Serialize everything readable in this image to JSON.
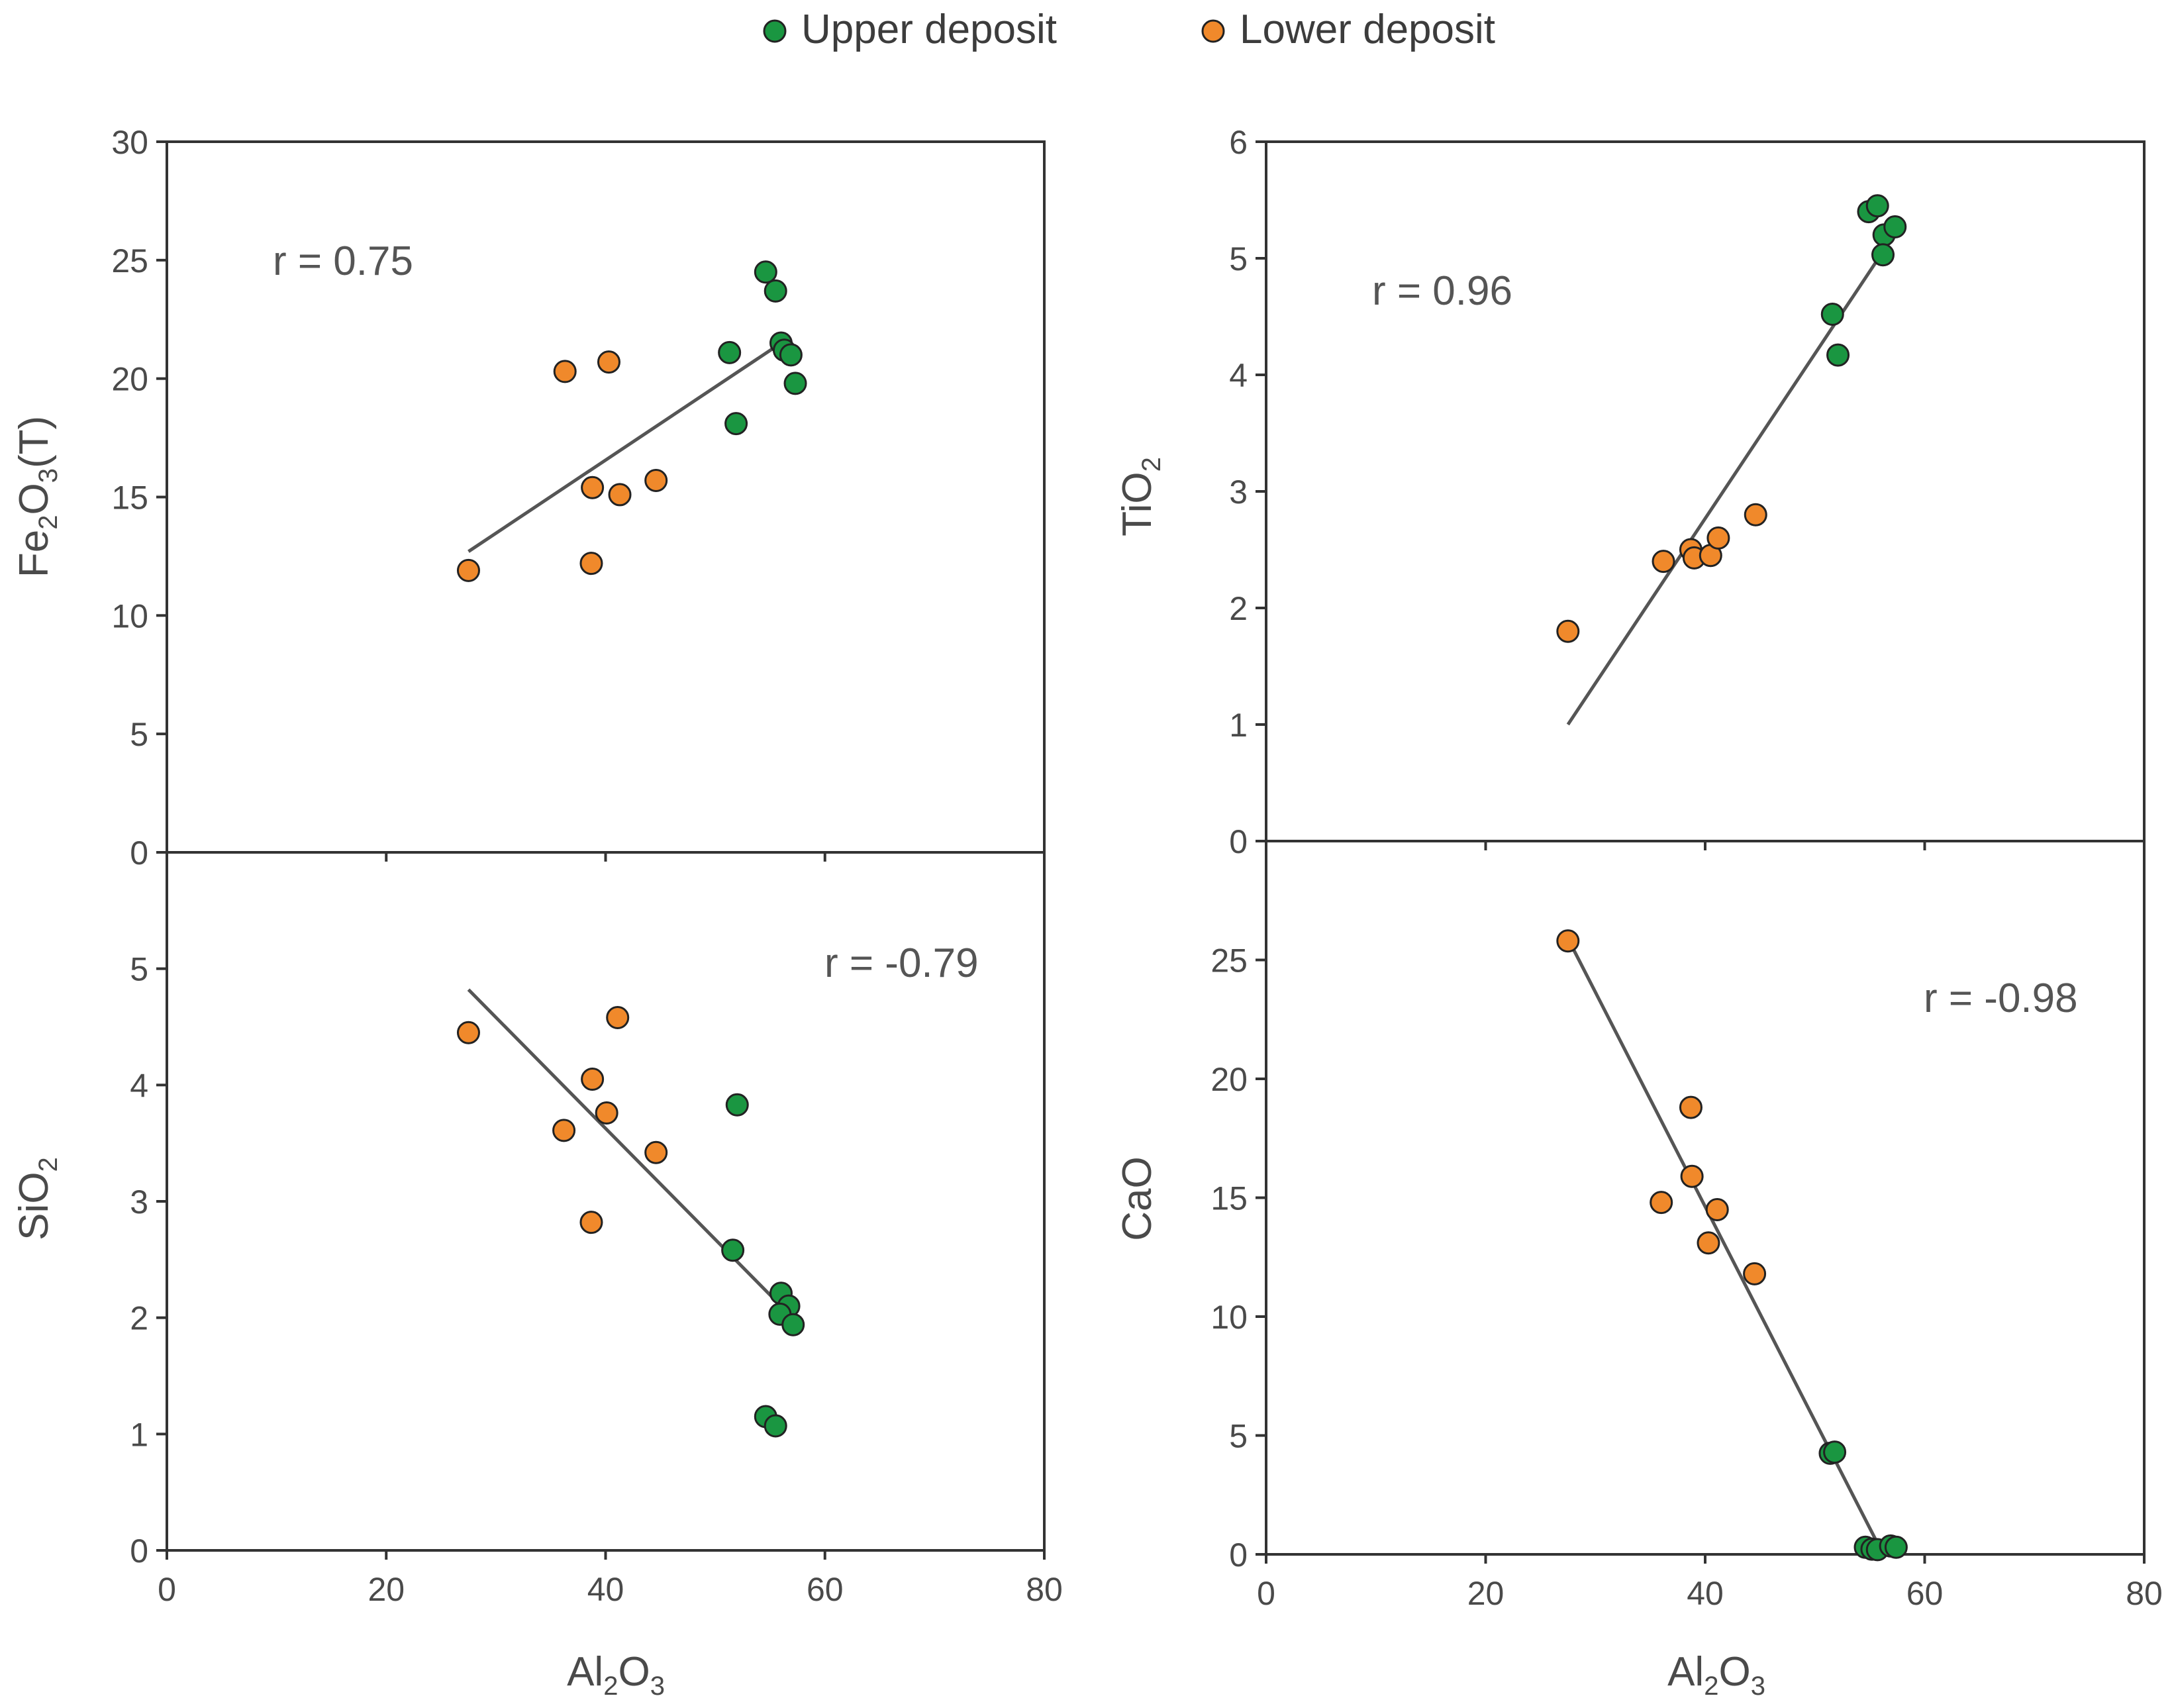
{
  "legend": {
    "upper": {
      "label": "Upper deposit",
      "color": "#1a9641"
    },
    "lower": {
      "label": "Lower deposit",
      "color": "#f0892b"
    }
  },
  "colors": {
    "axis": "#333333",
    "trend": "#555555",
    "point_edge": "#222222"
  },
  "chart_data": [
    {
      "id": "fe2o3",
      "type": "scatter",
      "ylabel_main": "Fe",
      "ylabel_parts": [
        "Fe",
        "2",
        "O",
        "3",
        "(T)"
      ],
      "xlabel_parts": [
        "Al",
        "2",
        "O",
        "3"
      ],
      "xlim": [
        0,
        80
      ],
      "ylim": [
        0,
        30
      ],
      "xticks": [
        "0",
        "20",
        "40",
        "60",
        "80"
      ],
      "yticks": [
        "0",
        "5",
        "10",
        "15",
        "20",
        "25",
        "30"
      ],
      "annotation": "r = 0.75",
      "trendline": [
        [
          27.5,
          12.7
        ],
        [
          56.0,
          21.5
        ]
      ],
      "series": [
        {
          "name": "Lower deposit",
          "points": [
            [
              27.5,
              11.9
            ],
            [
              36.3,
              20.3
            ],
            [
              40.3,
              20.7
            ],
            [
              38.8,
              15.4
            ],
            [
              41.3,
              15.1
            ],
            [
              44.6,
              15.7
            ],
            [
              38.7,
              12.2
            ]
          ]
        },
        {
          "name": "Upper deposit",
          "points": [
            [
              54.6,
              24.5
            ],
            [
              55.5,
              23.7
            ],
            [
              51.3,
              21.1
            ],
            [
              56.0,
              21.5
            ],
            [
              56.3,
              21.2
            ],
            [
              56.9,
              21.0
            ],
            [
              57.3,
              19.8
            ],
            [
              51.9,
              18.1
            ]
          ]
        }
      ]
    },
    {
      "id": "tio2",
      "type": "scatter",
      "ylabel_parts": [
        "Ti",
        "O",
        "2"
      ],
      "xlabel_parts": [
        "Al",
        "2",
        "O",
        "3"
      ],
      "xlim": [
        0,
        80
      ],
      "ylim": [
        0,
        6
      ],
      "xticks": [
        "0",
        "20",
        "40",
        "60",
        "80"
      ],
      "yticks": [
        "0",
        "1",
        "2",
        "3",
        "4",
        "5",
        "6"
      ],
      "annotation": "r = 0.96",
      "trendline": [
        [
          27.5,
          1.0
        ],
        [
          56.5,
          5.1
        ]
      ],
      "series": [
        {
          "name": "Lower deposit",
          "points": [
            [
              27.5,
              1.8
            ],
            [
              36.2,
              2.4
            ],
            [
              38.7,
              2.5
            ],
            [
              39.0,
              2.43
            ],
            [
              40.5,
              2.45
            ],
            [
              41.2,
              2.6
            ],
            [
              44.6,
              2.8
            ]
          ]
        },
        {
          "name": "Upper deposit",
          "points": [
            [
              54.9,
              5.4
            ],
            [
              55.7,
              5.45
            ],
            [
              56.3,
              5.2
            ],
            [
              57.3,
              5.27
            ],
            [
              56.2,
              5.03
            ],
            [
              51.6,
              4.52
            ],
            [
              52.1,
              4.17
            ]
          ]
        }
      ]
    },
    {
      "id": "sio2",
      "type": "scatter",
      "ylabel_parts": [
        "Si",
        "O",
        "2"
      ],
      "xlabel_parts": [
        "Al",
        "2",
        "O",
        "3"
      ],
      "xlim": [
        0,
        80
      ],
      "ylim": [
        0,
        6
      ],
      "xticks": [
        "0",
        "20",
        "40",
        "60",
        "80"
      ],
      "yticks": [
        "0",
        "1",
        "2",
        "3",
        "4",
        "5"
      ],
      "annotation": "r = -0.79",
      "trendline": [
        [
          27.5,
          4.82
        ],
        [
          56.0,
          2.1
        ]
      ],
      "series": [
        {
          "name": "Lower deposit",
          "points": [
            [
              27.5,
              4.45
            ],
            [
              41.1,
              4.58
            ],
            [
              38.8,
              4.05
            ],
            [
              40.1,
              3.76
            ],
            [
              36.2,
              3.61
            ],
            [
              44.6,
              3.42
            ],
            [
              38.7,
              2.82
            ]
          ]
        },
        {
          "name": "Upper deposit",
          "points": [
            [
              52.0,
              3.83
            ],
            [
              51.6,
              2.58
            ],
            [
              56.0,
              2.21
            ],
            [
              56.7,
              2.1
            ],
            [
              55.9,
              2.03
            ],
            [
              57.1,
              1.94
            ],
            [
              54.6,
              1.15
            ],
            [
              55.5,
              1.07
            ]
          ]
        }
      ]
    },
    {
      "id": "cao",
      "type": "scatter",
      "ylabel_parts": [
        "CaO"
      ],
      "xlabel_parts": [
        "Al",
        "2",
        "O",
        "3"
      ],
      "xlim": [
        0,
        80
      ],
      "ylim": [
        0,
        30
      ],
      "xticks": [
        "0",
        "20",
        "40",
        "60",
        "80"
      ],
      "yticks": [
        "0",
        "5",
        "10",
        "15",
        "20",
        "25"
      ],
      "annotation": "r = -0.98",
      "trendline": [
        [
          27.5,
          25.9
        ],
        [
          56.0,
          0.2
        ]
      ],
      "series": [
        {
          "name": "Lower deposit",
          "points": [
            [
              27.5,
              25.8
            ],
            [
              38.7,
              18.8
            ],
            [
              38.8,
              15.9
            ],
            [
              36.0,
              14.8
            ],
            [
              41.1,
              14.5
            ],
            [
              40.3,
              13.1
            ],
            [
              44.5,
              11.8
            ]
          ]
        },
        {
          "name": "Upper deposit",
          "points": [
            [
              51.4,
              4.25
            ],
            [
              51.8,
              4.3
            ],
            [
              54.6,
              0.3
            ],
            [
              55.2,
              0.22
            ],
            [
              55.7,
              0.2
            ],
            [
              56.9,
              0.35
            ],
            [
              57.4,
              0.3
            ]
          ]
        }
      ]
    }
  ]
}
